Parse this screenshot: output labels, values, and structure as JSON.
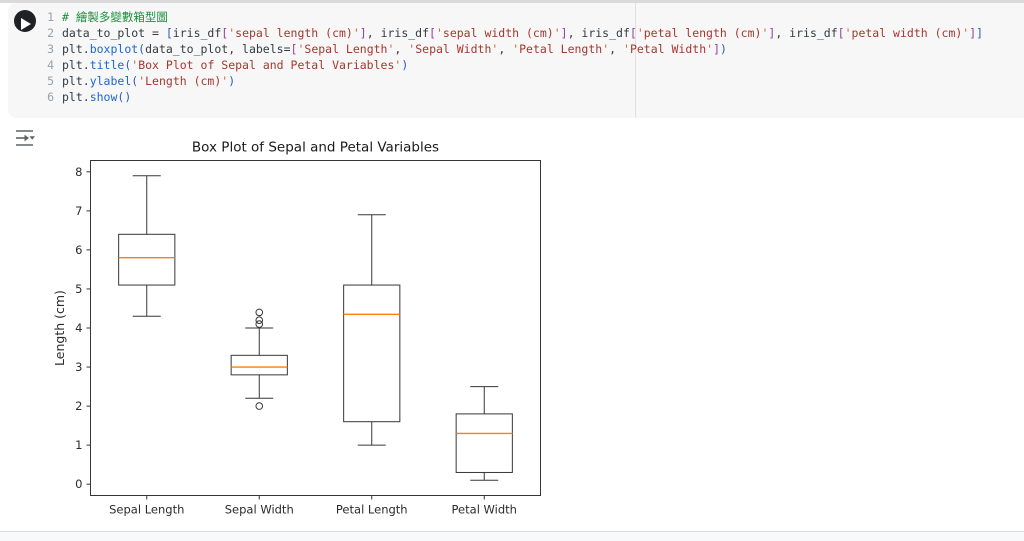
{
  "cell": {
    "run_icon": "play-icon",
    "lines": [
      {
        "n": "1",
        "tokens": [
          [
            "c",
            "# 繪製多變數箱型圖"
          ]
        ]
      },
      {
        "n": "2",
        "tokens": [
          [
            "p",
            "data_to_plot = "
          ],
          [
            "b1",
            "["
          ],
          [
            "p",
            "iris_df"
          ],
          [
            "b2",
            "["
          ],
          [
            "s",
            "'sepal length (cm)'"
          ],
          [
            "b2",
            "]"
          ],
          [
            "p",
            ", iris_df"
          ],
          [
            "b2",
            "["
          ],
          [
            "s",
            "'sepal width (cm)'"
          ],
          [
            "b2",
            "]"
          ],
          [
            "p",
            ", iris_df"
          ],
          [
            "b2",
            "["
          ],
          [
            "s",
            "'petal length (cm)'"
          ],
          [
            "b2",
            "]"
          ],
          [
            "p",
            ", iris_df"
          ],
          [
            "b2",
            "["
          ],
          [
            "s",
            "'petal width (cm)'"
          ],
          [
            "b2",
            "]"
          ],
          [
            "b1",
            "]"
          ]
        ]
      },
      {
        "n": "3",
        "tokens": [
          [
            "p",
            "plt."
          ],
          [
            "m",
            "boxplot"
          ],
          [
            "b1",
            "("
          ],
          [
            "p",
            "data_to_plot, labels="
          ],
          [
            "b2",
            "["
          ],
          [
            "s",
            "'Sepal Length'"
          ],
          [
            "p",
            ", "
          ],
          [
            "s",
            "'Sepal Width'"
          ],
          [
            "p",
            ", "
          ],
          [
            "s",
            "'Petal Length'"
          ],
          [
            "p",
            ", "
          ],
          [
            "s",
            "'Petal Width'"
          ],
          [
            "b2",
            "]"
          ],
          [
            "b1",
            ")"
          ]
        ]
      },
      {
        "n": "4",
        "tokens": [
          [
            "p",
            "plt."
          ],
          [
            "m",
            "title"
          ],
          [
            "b1",
            "("
          ],
          [
            "s",
            "'Box Plot of Sepal and Petal Variables'"
          ],
          [
            "b1",
            ")"
          ]
        ]
      },
      {
        "n": "5",
        "tokens": [
          [
            "p",
            "plt."
          ],
          [
            "m",
            "ylabel"
          ],
          [
            "b1",
            "("
          ],
          [
            "s",
            "'Length (cm)'"
          ],
          [
            "b1",
            ")"
          ]
        ]
      },
      {
        "n": "6",
        "tokens": [
          [
            "p",
            "plt."
          ],
          [
            "m",
            "show"
          ],
          [
            "b1",
            "("
          ],
          [
            "b1",
            ")"
          ]
        ]
      }
    ]
  },
  "output": {
    "toggle_icon": "output-options-icon"
  },
  "chart_data": {
    "type": "boxplot",
    "title": "Box Plot of Sepal and Petal Variables",
    "ylabel": "Length (cm)",
    "categories": [
      "Sepal Length",
      "Sepal Width",
      "Petal Length",
      "Petal Width"
    ],
    "yticks": [
      0,
      1,
      2,
      3,
      4,
      5,
      6,
      7,
      8
    ],
    "ylim": [
      -0.29,
      8.29
    ],
    "grid": false,
    "boxes": [
      {
        "label": "Sepal Length",
        "whisker_low": 4.3,
        "q1": 5.1,
        "median": 5.8,
        "q3": 6.4,
        "whisker_high": 7.9,
        "outliers": []
      },
      {
        "label": "Sepal Width",
        "whisker_low": 2.2,
        "q1": 2.8,
        "median": 3.0,
        "q3": 3.3,
        "whisker_high": 4.0,
        "outliers": [
          2.0,
          4.1,
          4.2,
          4.4
        ]
      },
      {
        "label": "Petal Length",
        "whisker_low": 1.0,
        "q1": 1.6,
        "median": 4.35,
        "q3": 5.1,
        "whisker_high": 6.9,
        "outliers": []
      },
      {
        "label": "Petal Width",
        "whisker_low": 0.1,
        "q1": 0.3,
        "median": 1.3,
        "q3": 1.8,
        "whisker_high": 2.5,
        "outliers": []
      }
    ],
    "colors": {
      "box_line": "#363636",
      "median_line": "#ff7f0e",
      "text": "#2b2b2b"
    }
  }
}
